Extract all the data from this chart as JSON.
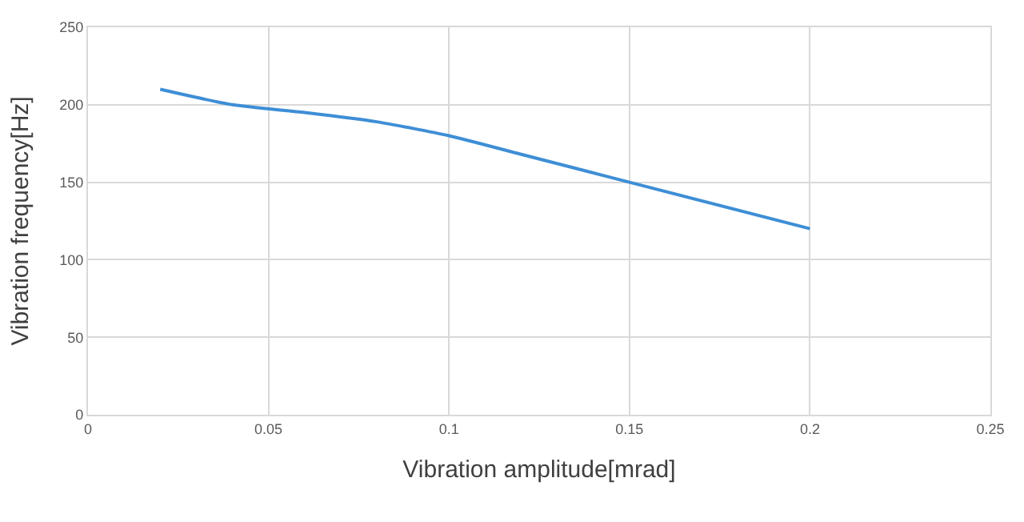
{
  "chart_data": {
    "type": "line",
    "xlabel": "Vibration amplitude[mrad]",
    "ylabel": "Vibration frequency[Hz]",
    "x": [
      0.02,
      0.04,
      0.06,
      0.08,
      0.1,
      0.12,
      0.15,
      0.2
    ],
    "series": [
      {
        "color": "#3e8ed6",
        "values": [
          210,
          200,
          195,
          189,
          180,
          168,
          150,
          120
        ]
      }
    ],
    "xlim": [
      0,
      0.25
    ],
    "xticks": [
      0,
      0.05,
      0.1,
      0.15,
      0.2,
      0.25
    ],
    "ylim": [
      0,
      250
    ],
    "yticks": [
      0,
      50,
      100,
      150,
      200,
      250
    ],
    "grid": true,
    "marker": "none",
    "line_style": "solid"
  }
}
